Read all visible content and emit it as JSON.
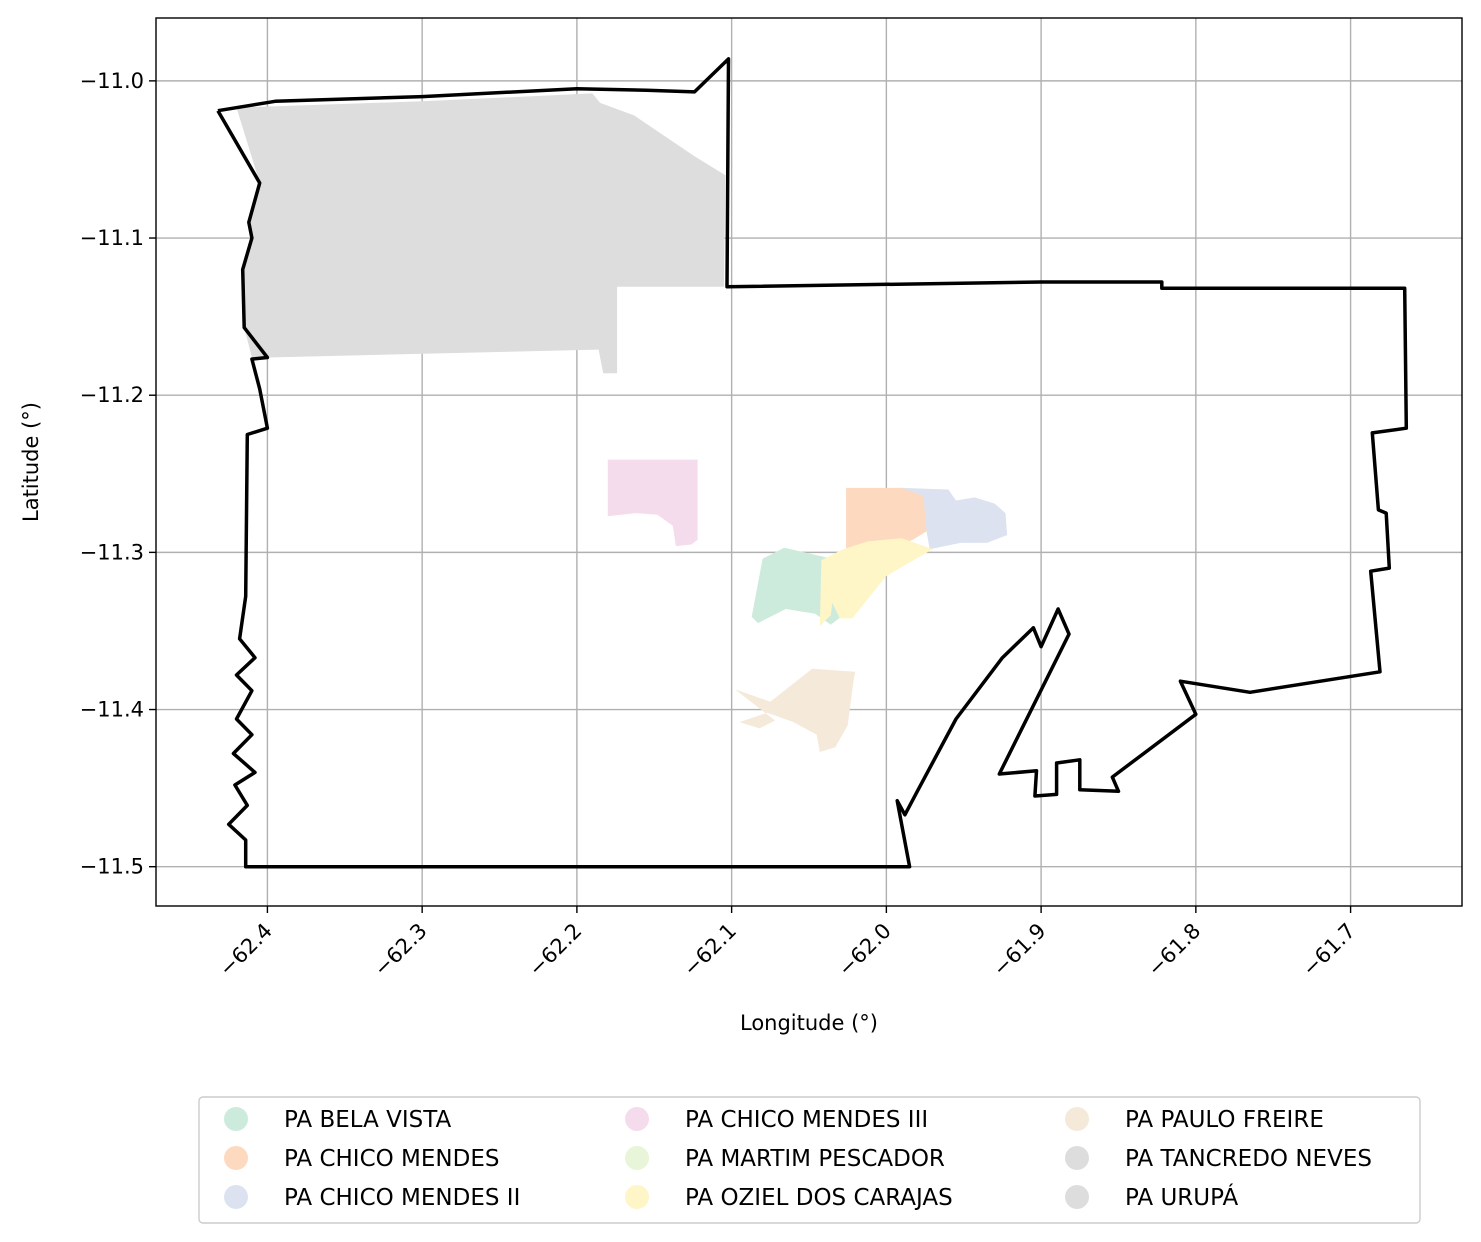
{
  "chart_data": {
    "type": "map",
    "xlabel": "Longitude (°)",
    "ylabel": "Latitude (°)",
    "xlim": [
      -62.472,
      -61.628
    ],
    "ylim": [
      -11.525,
      -10.96
    ],
    "grid": true,
    "legend_position": "bottom-center",
    "x_ticks": [
      -62.4,
      -62.3,
      -62.2,
      -62.1,
      -62.0,
      -61.9,
      -61.8,
      -61.7
    ],
    "x_tick_labels": [
      "−62.4",
      "−62.3",
      "−62.2",
      "−62.1",
      "−62.0",
      "−61.9",
      "−61.8",
      "−61.7"
    ],
    "y_ticks": [
      -11.0,
      -11.1,
      -11.2,
      -11.3,
      -11.4,
      -11.5
    ],
    "y_tick_labels": [
      "−11.0",
      "−11.1",
      "−11.2",
      "−11.3",
      "−11.4",
      "−11.5"
    ],
    "boundary": {
      "color": "#000000",
      "coordinates": [
        [
          -62.432,
          -11.019
        ],
        [
          -62.395,
          -11.013
        ],
        [
          -62.3,
          -11.01
        ],
        [
          -62.2,
          -11.005
        ],
        [
          -62.155,
          -11.006
        ],
        [
          -62.124,
          -11.007
        ],
        [
          -62.102,
          -10.986
        ],
        [
          -62.103,
          -11.131
        ],
        [
          -61.9,
          -11.128
        ],
        [
          -61.822,
          -11.128
        ],
        [
          -61.822,
          -11.132
        ],
        [
          -61.665,
          -11.132
        ],
        [
          -61.664,
          -11.221
        ],
        [
          -61.686,
          -11.224
        ],
        [
          -61.682,
          -11.273
        ],
        [
          -61.677,
          -11.275
        ],
        [
          -61.675,
          -11.31
        ],
        [
          -61.687,
          -11.312
        ],
        [
          -61.681,
          -11.376
        ],
        [
          -61.765,
          -11.389
        ],
        [
          -61.81,
          -11.382
        ],
        [
          -61.8,
          -11.403
        ],
        [
          -61.854,
          -11.443
        ],
        [
          -61.85,
          -11.452
        ],
        [
          -61.875,
          -11.451
        ],
        [
          -61.875,
          -11.432
        ],
        [
          -61.89,
          -11.434
        ],
        [
          -61.89,
          -11.454
        ],
        [
          -61.904,
          -11.455
        ],
        [
          -61.903,
          -11.439
        ],
        [
          -61.927,
          -11.441
        ],
        [
          -61.882,
          -11.352
        ],
        [
          -61.889,
          -11.336
        ],
        [
          -61.9,
          -11.36
        ],
        [
          -61.905,
          -11.348
        ],
        [
          -61.925,
          -11.367
        ],
        [
          -61.955,
          -11.406
        ],
        [
          -61.98,
          -11.452
        ],
        [
          -61.988,
          -11.467
        ],
        [
          -61.993,
          -11.458
        ],
        [
          -61.985,
          -11.5
        ],
        [
          -62.414,
          -11.5
        ],
        [
          -62.414,
          -11.483
        ],
        [
          -62.425,
          -11.473
        ],
        [
          -62.413,
          -11.461
        ],
        [
          -62.421,
          -11.448
        ],
        [
          -62.408,
          -11.44
        ],
        [
          -62.422,
          -11.428
        ],
        [
          -62.41,
          -11.416
        ],
        [
          -62.42,
          -11.406
        ],
        [
          -62.41,
          -11.388
        ],
        [
          -62.42,
          -11.378
        ],
        [
          -62.408,
          -11.367
        ],
        [
          -62.418,
          -11.355
        ],
        [
          -62.414,
          -11.328
        ],
        [
          -62.413,
          -11.225
        ],
        [
          -62.4,
          -11.221
        ],
        [
          -62.405,
          -11.196
        ],
        [
          -62.41,
          -11.177
        ],
        [
          -62.4,
          -11.176
        ],
        [
          -62.415,
          -11.157
        ],
        [
          -62.416,
          -11.12
        ],
        [
          -62.41,
          -11.1
        ],
        [
          -62.412,
          -11.09
        ],
        [
          -62.405,
          -11.065
        ],
        [
          -62.432,
          -11.019
        ]
      ]
    },
    "series": [
      {
        "name": "PA BELA VISTA",
        "color": "#cdebdc",
        "polygon": [
          [
            -62.087,
            -11.341
          ],
          [
            -62.08,
            -11.304
          ],
          [
            -62.066,
            -11.297
          ],
          [
            -62.035,
            -11.304
          ],
          [
            -62.026,
            -11.317
          ],
          [
            -62.028,
            -11.34
          ],
          [
            -62.036,
            -11.346
          ],
          [
            -62.046,
            -11.339
          ],
          [
            -62.065,
            -11.336
          ],
          [
            -62.083,
            -11.345
          ]
        ]
      },
      {
        "name": "PA CHICO MENDES",
        "color": "#fdd9c0",
        "polygon": [
          [
            -62.026,
            -11.259
          ],
          [
            -61.99,
            -11.259
          ],
          [
            -61.975,
            -11.263
          ],
          [
            -61.973,
            -11.286
          ],
          [
            -61.983,
            -11.292
          ],
          [
            -61.995,
            -11.297
          ],
          [
            -62.014,
            -11.297
          ],
          [
            -62.026,
            -11.305
          ]
        ]
      },
      {
        "name": "PA CHICO MENDES II",
        "color": "#dde2f1",
        "polygon": [
          [
            -61.99,
            -11.259
          ],
          [
            -61.96,
            -11.26
          ],
          [
            -61.955,
            -11.267
          ],
          [
            -61.943,
            -11.265
          ],
          [
            -61.93,
            -11.269
          ],
          [
            -61.923,
            -11.275
          ],
          [
            -61.922,
            -11.289
          ],
          [
            -61.935,
            -11.294
          ],
          [
            -61.952,
            -11.294
          ],
          [
            -61.972,
            -11.298
          ],
          [
            -61.974,
            -11.287
          ],
          [
            -61.976,
            -11.264
          ]
        ]
      },
      {
        "name": "PA CHICO MENDES III",
        "color": "#f5dced",
        "polygon": [
          [
            -62.18,
            -11.241
          ],
          [
            -62.122,
            -11.241
          ],
          [
            -62.122,
            -11.292
          ],
          [
            -62.126,
            -11.295
          ],
          [
            -62.136,
            -11.296
          ],
          [
            -62.138,
            -11.283
          ],
          [
            -62.148,
            -11.276
          ],
          [
            -62.162,
            -11.275
          ],
          [
            -62.18,
            -11.277
          ]
        ]
      },
      {
        "name": "PA MARTIM PESCADOR",
        "color": "#e8f5d9",
        "polygon": []
      },
      {
        "name": "PA OZIEL DOS CARAJAS",
        "color": "#fef6c6",
        "polygon": [
          [
            -62.042,
            -11.305
          ],
          [
            -62.028,
            -11.298
          ],
          [
            -62.012,
            -11.293
          ],
          [
            -61.99,
            -11.291
          ],
          [
            -61.97,
            -11.298
          ],
          [
            -62.0,
            -11.315
          ],
          [
            -62.022,
            -11.342
          ],
          [
            -62.03,
            -11.342
          ],
          [
            -62.036,
            -11.33
          ],
          [
            -62.033,
            -11.318
          ],
          [
            -62.036,
            -11.34
          ],
          [
            -62.043,
            -11.347
          ]
        ]
      },
      {
        "name": "PA PAULO FREIRE",
        "color": "#f5e9da",
        "polygon": [
          [
            -62.098,
            -11.387
          ],
          [
            -62.085,
            -11.397
          ],
          [
            -62.072,
            -11.407
          ],
          [
            -62.082,
            -11.412
          ],
          [
            -62.095,
            -11.408
          ],
          [
            -62.077,
            -11.402
          ],
          [
            -62.06,
            -11.408
          ],
          [
            -62.045,
            -11.416
          ],
          [
            -62.043,
            -11.427
          ],
          [
            -62.033,
            -11.424
          ],
          [
            -62.025,
            -11.41
          ],
          [
            -62.021,
            -11.38
          ],
          [
            -62.02,
            -11.376
          ],
          [
            -62.048,
            -11.374
          ],
          [
            -62.075,
            -11.395
          ]
        ]
      },
      {
        "name": "PA TANCREDO NEVES",
        "color": "#dddddd",
        "polygon": [
          [
            -62.42,
            -11.017
          ],
          [
            -62.3,
            -11.013
          ],
          [
            -62.19,
            -11.008
          ],
          [
            -62.185,
            -11.014
          ],
          [
            -62.163,
            -11.022
          ],
          [
            -62.124,
            -11.048
          ],
          [
            -62.104,
            -11.06
          ],
          [
            -62.105,
            -11.131
          ],
          [
            -62.174,
            -11.131
          ],
          [
            -62.174,
            -11.186
          ],
          [
            -62.183,
            -11.186
          ],
          [
            -62.186,
            -11.171
          ],
          [
            -62.4,
            -11.176
          ],
          [
            -62.41,
            -11.176
          ],
          [
            -62.415,
            -11.157
          ],
          [
            -62.416,
            -11.12
          ],
          [
            -62.41,
            -11.1
          ],
          [
            -62.412,
            -11.09
          ],
          [
            -62.405,
            -11.065
          ]
        ]
      },
      {
        "name": "PA URUPÁ",
        "color": "#dddddd",
        "polygon": []
      }
    ]
  }
}
